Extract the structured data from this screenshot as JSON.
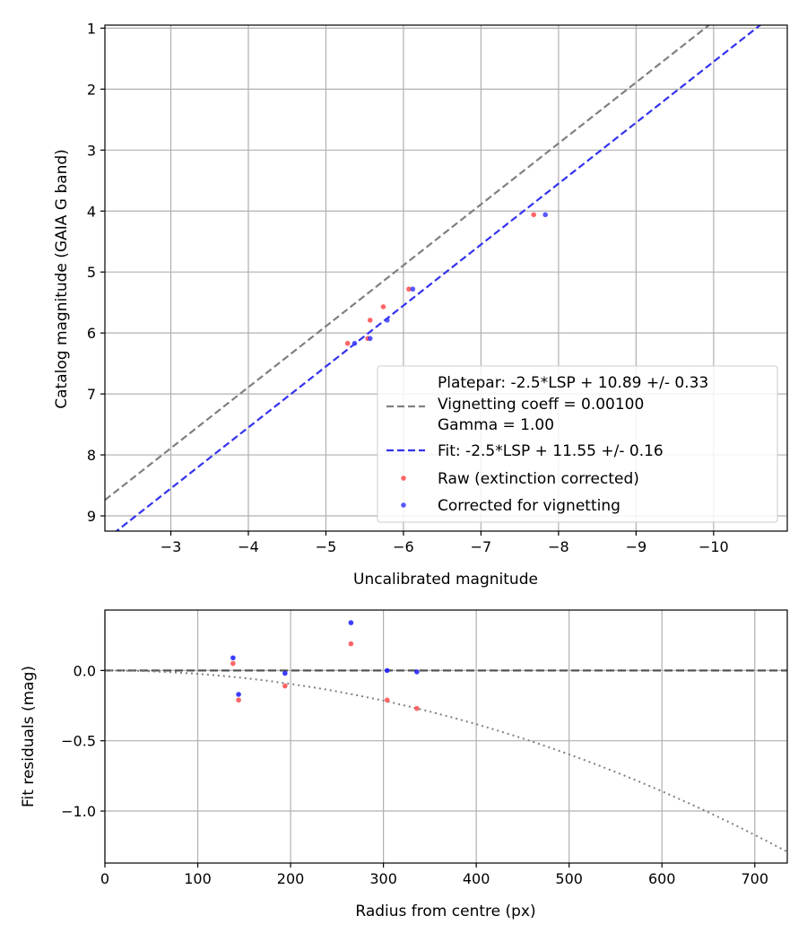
{
  "chart_data": [
    {
      "type": "scatter",
      "xlabel": "Uncalibrated magnitude",
      "ylabel": "Catalog magnitude (GAIA G band)",
      "xlim": [
        -2.15,
        -10.95
      ],
      "ylim": [
        9.25,
        0.95
      ],
      "x_ticks": [
        -3,
        -4,
        -5,
        -6,
        -7,
        -8,
        -9,
        -10
      ],
      "x_tick_labels": [
        "−3",
        "−4",
        "−5",
        "−6",
        "−7",
        "−8",
        "−9",
        "−10"
      ],
      "y_ticks": [
        1,
        2,
        3,
        4,
        5,
        6,
        7,
        8,
        9
      ],
      "y_tick_labels": [
        "1",
        "2",
        "3",
        "4",
        "5",
        "6",
        "7",
        "8",
        "9"
      ],
      "grid": true,
      "legend_placement": "lower-right",
      "lines": [
        {
          "name": "Vignetting coeff = 0.00100",
          "color": "#808080",
          "style": "dashed",
          "slope": 1,
          "intercept": 10.89
        },
        {
          "name": "Fit: -2.5*LSP + 11.55 +/- 0.16",
          "color": "#3333ee",
          "style": "dashed",
          "slope": 1,
          "intercept": 11.55
        }
      ],
      "series": [
        {
          "name": "Raw (extinction corrected)",
          "color": "#ff4b4b",
          "x": [
            -5.28,
            -5.54,
            -5.57,
            -5.74,
            -6.07,
            -7.68
          ],
          "y": [
            6.17,
            6.09,
            5.79,
            5.57,
            5.28,
            4.06
          ]
        },
        {
          "name": "Corrected for vignetting",
          "color": "#3b3bff",
          "x": [
            -5.37,
            -5.57,
            -5.79,
            -6.12,
            -7.83
          ],
          "y": [
            6.17,
            6.09,
            5.79,
            5.28,
            4.06
          ]
        }
      ],
      "legend": {
        "title_lines": [
          "Platepar: -2.5*LSP + 10.89 +/- 0.33"
        ],
        "entries": [
          "Vignetting coeff = 0.00100",
          "Gamma = 1.00",
          "Fit: -2.5*LSP + 11.55 +/- 0.16",
          "Raw (extinction corrected)",
          "Corrected for vignetting"
        ]
      }
    },
    {
      "type": "scatter",
      "xlabel": "Radius from centre (px)",
      "ylabel": "Fit residuals (mag)",
      "xlim": [
        0,
        735
      ],
      "ylim": [
        -1.37,
        0.43
      ],
      "x_ticks": [
        0,
        100,
        200,
        300,
        400,
        500,
        600,
        700
      ],
      "x_tick_labels": [
        "0",
        "100",
        "200",
        "300",
        "400",
        "500",
        "600",
        "700"
      ],
      "y_ticks": [
        0.0,
        -0.5,
        -1.0
      ],
      "y_tick_labels": [
        "0.0",
        "−0.5",
        "−1.0"
      ],
      "grid": true,
      "reference_line": {
        "y": 0,
        "color": "#555555",
        "style": "dashed"
      },
      "vignetting_curve": {
        "color": "#808080",
        "style": "dotted",
        "x_max": 735,
        "y_at_x_max": -1.29
      },
      "series": [
        {
          "name": "Raw (extinction corrected)",
          "color": "#ff4b4b",
          "x": [
            138,
            144,
            194,
            265,
            304,
            336
          ],
          "y": [
            0.05,
            -0.21,
            -0.11,
            0.19,
            -0.21,
            -0.27
          ]
        },
        {
          "name": "Corrected for vignetting",
          "color": "#1a1aff",
          "x": [
            138,
            144,
            194,
            265,
            304,
            336
          ],
          "y": [
            0.09,
            -0.17,
            -0.02,
            0.34,
            0.0,
            -0.01
          ]
        }
      ]
    }
  ]
}
